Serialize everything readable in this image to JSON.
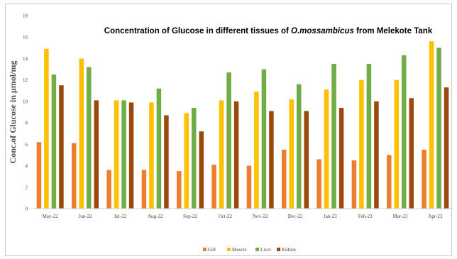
{
  "chart_data": {
    "type": "bar",
    "title": {
      "prefix": "Concentration of Glucose in different tissues of ",
      "species": "O.mossambicus",
      "suffix": " from Melekote Tank"
    },
    "ylabel": "Conc.of Glucose in  µmol/mg",
    "xlabel": "",
    "ylim": [
      0,
      18
    ],
    "yticks": [
      0,
      2,
      4,
      6,
      8,
      10,
      12,
      14,
      16,
      18
    ],
    "grid": false,
    "legend_position": "bottom",
    "categories": [
      "May-22",
      "Jun-22",
      "Jul-22",
      "Aug-22",
      "Sep-22",
      "Oct-22",
      "Nov-22",
      "Dec-22",
      "Jan-23",
      "Feb-23",
      "Mar-23",
      "Apr-23"
    ],
    "series": [
      {
        "name": "Gill",
        "color": "#ed7d31",
        "values": [
          6.2,
          6.1,
          3.6,
          3.6,
          3.5,
          4.1,
          4.0,
          5.5,
          4.6,
          4.5,
          5.0,
          5.5
        ]
      },
      {
        "name": "Muscle",
        "color": "#ffc000",
        "values": [
          14.9,
          14.0,
          10.1,
          9.9,
          8.9,
          10.1,
          10.9,
          10.2,
          11.1,
          12.0,
          12.0,
          15.6
        ]
      },
      {
        "name": "Liver",
        "color": "#70ad47",
        "values": [
          12.5,
          13.2,
          10.1,
          11.2,
          9.4,
          12.7,
          13.0,
          11.6,
          13.5,
          13.5,
          14.3,
          15.0
        ]
      },
      {
        "name": "Kidney",
        "color": "#9e480e",
        "values": [
          11.5,
          10.1,
          9.9,
          8.7,
          7.2,
          10.0,
          9.1,
          9.1,
          9.4,
          10.0,
          10.3,
          11.3
        ]
      }
    ]
  }
}
